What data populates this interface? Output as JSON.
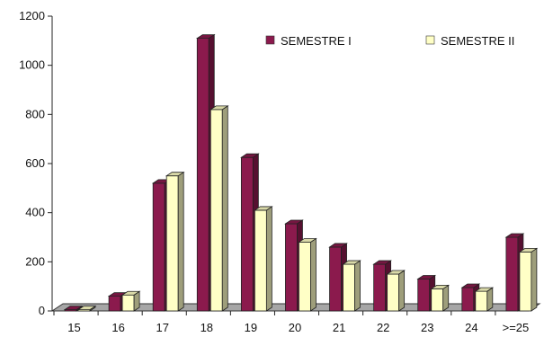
{
  "chart_data": {
    "type": "bar",
    "categories": [
      "15",
      "16",
      "17",
      "18",
      "19",
      "20",
      "21",
      "22",
      "23",
      "24",
      ">=25"
    ],
    "series": [
      {
        "name": "SEMESTRE I",
        "color": "#8b1a4d",
        "values": [
          5,
          60,
          520,
          1110,
          625,
          355,
          260,
          190,
          130,
          95,
          300
        ]
      },
      {
        "name": "SEMESTRE II",
        "color": "#ffffc6",
        "values": [
          5,
          65,
          550,
          820,
          410,
          280,
          190,
          150,
          90,
          80,
          240
        ]
      }
    ],
    "yticks": [
      "0",
      "200",
      "400",
      "600",
      "800",
      "1000",
      "1200"
    ],
    "ylim": [
      0,
      1200
    ],
    "grid": false,
    "legend": "top-right"
  }
}
